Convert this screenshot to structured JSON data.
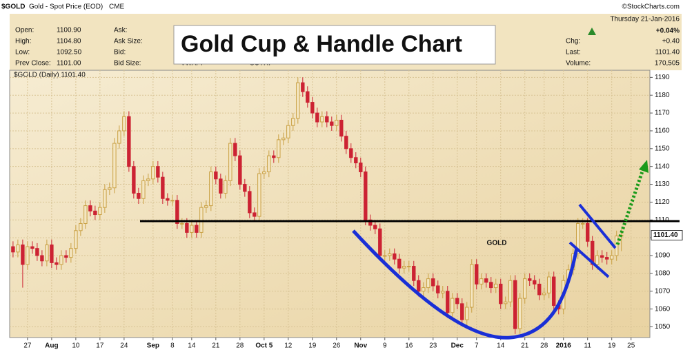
{
  "header": {
    "symbol": "$GOLD",
    "name": "Gold - Spot Price (EOD)",
    "exchange": "CME",
    "credit": "©StockCharts.com",
    "date": "Thursday   21-Jan-2016",
    "change_pct": "+0.04%",
    "fields_left": [
      [
        "Open:",
        "1100.90"
      ],
      [
        "High:",
        "1104.80"
      ],
      [
        "Low:",
        "1092.50"
      ],
      [
        "Prev Close:",
        "1101.00"
      ]
    ],
    "fields_mid": [
      "Ask:",
      "Ask Size:",
      "Bid:",
      "Bid Size:"
    ],
    "fields_bottom": [
      "VWAP:",
      "SCTR:"
    ],
    "fields_right": [
      [
        "Chg:",
        "+0.40"
      ],
      [
        "Last:",
        "1101.40"
      ],
      [
        "Volume:",
        "170,505"
      ]
    ]
  },
  "chart_data": {
    "type": "candlestick",
    "title": "Gold Cup & Handle Chart",
    "legend_label": "$GOLD (Daily) 1101.40",
    "annotations": [
      "GOLD"
    ],
    "price_tag": "1101.40",
    "up_color": "#c9a043",
    "down_color": "#cc2233",
    "open": [
      1095,
      1092,
      1096,
      1085,
      1095,
      1094,
      1090,
      1087,
      1096,
      1086,
      1085,
      1090,
      1089,
      1094,
      1104,
      1108,
      1118,
      1115,
      1113,
      1117,
      1127,
      1128,
      1153,
      1160,
      1168,
      1140,
      1125,
      1122,
      1132,
      1133,
      1140,
      1134,
      1122,
      1121,
      1121,
      1108,
      1108,
      1103,
      1107,
      1103,
      1117,
      1118,
      1137,
      1133,
      1125,
      1132,
      1153,
      1146,
      1130,
      1126,
      1114,
      1112,
      1136,
      1137,
      1146,
      1145,
      1155,
      1156,
      1163,
      1167,
      1187,
      1182,
      1176,
      1170,
      1165,
      1168,
      1165,
      1163,
      1166,
      1157,
      1150,
      1145,
      1142,
      1137,
      1110,
      1107,
      1105,
      1090,
      1090,
      1091,
      1088,
      1083,
      1084,
      1084,
      1076,
      1070,
      1072,
      1077,
      1073,
      1069,
      1070,
      1058,
      1066,
      1063,
      1054,
      1061,
      1085,
      1074,
      1077,
      1075,
      1072,
      1074,
      1063,
      1064,
      1076,
      1049,
      1066,
      1077,
      1076,
      1074,
      1068,
      1069,
      1078,
      1062,
      1060,
      1076,
      1082,
      1091,
      1108,
      1108,
      1098,
      1085,
      1090,
      1089,
      1088,
      1090,
      1100.9
    ],
    "high": [
      1098,
      1099,
      1099,
      1098,
      1098,
      1097,
      1093,
      1099,
      1099,
      1089,
      1093,
      1093,
      1097,
      1107,
      1111,
      1121,
      1121,
      1118,
      1120,
      1130,
      1131,
      1156,
      1163,
      1171,
      1171,
      1143,
      1128,
      1135,
      1136,
      1143,
      1143,
      1137,
      1125,
      1124,
      1124,
      1111,
      1111,
      1110,
      1110,
      1120,
      1121,
      1140,
      1140,
      1136,
      1135,
      1156,
      1156,
      1149,
      1133,
      1129,
      1117,
      1139,
      1140,
      1149,
      1149,
      1158,
      1159,
      1166,
      1170,
      1190,
      1190,
      1185,
      1179,
      1173,
      1171,
      1171,
      1168,
      1169,
      1169,
      1160,
      1153,
      1148,
      1145,
      1140,
      1113,
      1110,
      1108,
      1093,
      1094,
      1094,
      1091,
      1087,
      1087,
      1087,
      1079,
      1075,
      1080,
      1080,
      1076,
      1073,
      1073,
      1069,
      1069,
      1066,
      1064,
      1088,
      1088,
      1080,
      1080,
      1078,
      1077,
      1077,
      1067,
      1079,
      1079,
      1069,
      1080,
      1080,
      1079,
      1077,
      1072,
      1081,
      1081,
      1065,
      1079,
      1085,
      1094,
      1111,
      1111,
      1111,
      1101,
      1093,
      1093,
      1092,
      1093,
      1104,
      1104.8
    ],
    "low": [
      1089,
      1089,
      1072,
      1082,
      1091,
      1087,
      1084,
      1084,
      1083,
      1082,
      1082,
      1086,
      1086,
      1091,
      1101,
      1105,
      1112,
      1110,
      1110,
      1114,
      1124,
      1125,
      1150,
      1157,
      1137,
      1122,
      1119,
      1119,
      1129,
      1130,
      1131,
      1119,
      1118,
      1118,
      1105,
      1105,
      1100,
      1100,
      1100,
      1100,
      1114,
      1115,
      1130,
      1122,
      1122,
      1129,
      1143,
      1127,
      1123,
      1111,
      1109,
      1109,
      1133,
      1134,
      1142,
      1142,
      1152,
      1153,
      1160,
      1164,
      1179,
      1173,
      1167,
      1162,
      1162,
      1162,
      1160,
      1160,
      1154,
      1147,
      1142,
      1139,
      1134,
      1107,
      1104,
      1102,
      1087,
      1087,
      1087,
      1085,
      1080,
      1080,
      1081,
      1073,
      1067,
      1067,
      1069,
      1070,
      1066,
      1066,
      1055,
      1055,
      1060,
      1051,
      1051,
      1058,
      1071,
      1071,
      1072,
      1069,
      1069,
      1060,
      1060,
      1061,
      1046,
      1046,
      1063,
      1073,
      1071,
      1065,
      1065,
      1066,
      1059,
      1057,
      1057,
      1073,
      1079,
      1088,
      1105,
      1095,
      1082,
      1082,
      1086,
      1085,
      1085,
      1087,
      1092.5
    ],
    "close": [
      1092,
      1096,
      1085,
      1095,
      1094,
      1090,
      1087,
      1096,
      1086,
      1085,
      1090,
      1089,
      1094,
      1104,
      1108,
      1118,
      1115,
      1113,
      1117,
      1127,
      1128,
      1153,
      1160,
      1168,
      1140,
      1125,
      1122,
      1132,
      1133,
      1140,
      1134,
      1122,
      1121,
      1121,
      1108,
      1108,
      1103,
      1107,
      1103,
      1117,
      1118,
      1137,
      1133,
      1125,
      1132,
      1153,
      1146,
      1130,
      1126,
      1114,
      1112,
      1136,
      1137,
      1146,
      1145,
      1155,
      1156,
      1163,
      1167,
      1187,
      1182,
      1176,
      1170,
      1165,
      1168,
      1165,
      1163,
      1166,
      1157,
      1150,
      1145,
      1142,
      1137,
      1110,
      1107,
      1105,
      1090,
      1090,
      1091,
      1088,
      1083,
      1084,
      1084,
      1076,
      1070,
      1072,
      1077,
      1073,
      1069,
      1070,
      1058,
      1066,
      1063,
      1054,
      1061,
      1085,
      1074,
      1077,
      1075,
      1072,
      1074,
      1063,
      1064,
      1076,
      1049,
      1066,
      1077,
      1076,
      1074,
      1068,
      1069,
      1078,
      1062,
      1060,
      1076,
      1082,
      1091,
      1108,
      1108,
      1098,
      1085,
      1090,
      1089,
      1088,
      1090,
      1101,
      1101.4
    ],
    "xlim": [
      -0.7,
      131.9
    ],
    "xticks": [
      {
        "value": 3,
        "label": "27"
      },
      {
        "value": 8,
        "label": "Aug"
      },
      {
        "value": 13,
        "label": "10"
      },
      {
        "value": 18,
        "label": "17"
      },
      {
        "value": 23,
        "label": "24"
      },
      {
        "value": 29,
        "label": "Sep"
      },
      {
        "value": 33,
        "label": "8"
      },
      {
        "value": 37,
        "label": "14"
      },
      {
        "value": 42,
        "label": "21"
      },
      {
        "value": 47,
        "label": "28"
      },
      {
        "value": 52,
        "label": "Oct 5"
      },
      {
        "value": 57,
        "label": "12"
      },
      {
        "value": 62,
        "label": "19"
      },
      {
        "value": 67,
        "label": "26"
      },
      {
        "value": 72,
        "label": "Nov"
      },
      {
        "value": 77,
        "label": "9"
      },
      {
        "value": 82,
        "label": "16"
      },
      {
        "value": 87,
        "label": "23"
      },
      {
        "value": 92,
        "label": "Dec"
      },
      {
        "value": 96,
        "label": "7"
      },
      {
        "value": 101,
        "label": "14"
      },
      {
        "value": 106,
        "label": "21"
      },
      {
        "value": 110,
        "label": "28"
      },
      {
        "value": 114,
        "label": "2016"
      },
      {
        "value": 119,
        "label": "11"
      },
      {
        "value": 124,
        "label": "19"
      },
      {
        "value": 128,
        "label": "25"
      }
    ],
    "ylim": [
      1044,
      1194
    ],
    "yticks": [
      1050,
      1060,
      1070,
      1080,
      1090,
      1100,
      1110,
      1120,
      1130,
      1140,
      1150,
      1160,
      1170,
      1180,
      1190
    ],
    "grid": true
  }
}
